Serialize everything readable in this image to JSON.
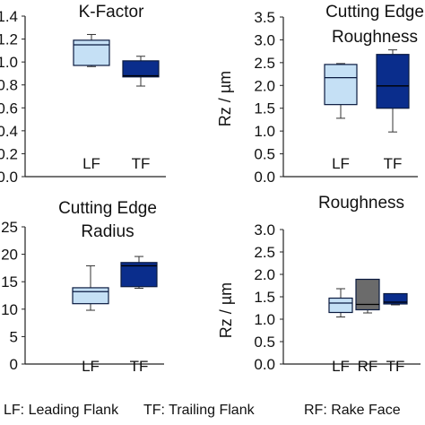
{
  "colors": {
    "leading_flank_fill": "#c5e0f5",
    "trailing_flank_fill": "#0a2d8c",
    "rake_face_fill": "#6b6b6b",
    "box_stroke": "#0a1a40",
    "axis": "#222222",
    "whisker": "#333333"
  },
  "legend_text": {
    "lf": "LF: Leading  Flank",
    "tf": "TF: Trailing Flank",
    "rf": "RF: Rake Face"
  },
  "chart_data": [
    {
      "type": "box",
      "title_lines": [
        "K-Factor"
      ],
      "ylabel": "",
      "ylim": [
        0,
        1.4
      ],
      "yticks": [
        "0.0",
        "0.2",
        "0.4",
        "0.6",
        "0.8",
        "1.0",
        "1.2",
        "1.4"
      ],
      "categories": [
        "LF",
        "TF"
      ],
      "series": [
        {
          "category": "LF",
          "color_key": "leading_flank_fill",
          "min": 0.96,
          "q1": 0.97,
          "median": 1.15,
          "q3": 1.19,
          "max": 1.24
        },
        {
          "category": "TF",
          "color_key": "trailing_flank_fill",
          "min": 0.79,
          "q1": 0.87,
          "median": 0.88,
          "q3": 1.01,
          "max": 1.05
        }
      ]
    },
    {
      "type": "box",
      "title_lines": [
        "Cutting Edge",
        "Roughness"
      ],
      "ylabel": "Rz / µm",
      "ylim": [
        0,
        3.5
      ],
      "yticks": [
        "0.0",
        "0.5",
        "1.0",
        "1.5",
        "2.0",
        "2.5",
        "3.0",
        "3.5"
      ],
      "categories": [
        "LF",
        "TF"
      ],
      "series": [
        {
          "category": "LF",
          "color_key": "leading_flank_fill",
          "min": 1.28,
          "q1": 1.58,
          "median": 2.17,
          "q3": 2.46,
          "max": 2.48
        },
        {
          "category": "TF",
          "color_key": "trailing_flank_fill",
          "min": 0.98,
          "q1": 1.5,
          "median": 1.99,
          "q3": 2.68,
          "max": 2.78
        }
      ]
    },
    {
      "type": "box",
      "title_lines": [
        "Cutting Edge",
        "Radius"
      ],
      "ylabel": "",
      "ylim": [
        0,
        25
      ],
      "yticks": [
        "0",
        "5",
        "10",
        "15",
        "20",
        "25"
      ],
      "categories": [
        "LF",
        "TF"
      ],
      "series": [
        {
          "category": "LF",
          "color_key": "leading_flank_fill",
          "min": 9.8,
          "q1": 11.0,
          "median": 13.2,
          "q3": 13.9,
          "max": 17.9
        },
        {
          "category": "TF",
          "color_key": "trailing_flank_fill",
          "min": 13.8,
          "q1": 14.1,
          "median": 17.9,
          "q3": 18.5,
          "max": 19.6
        }
      ]
    },
    {
      "type": "box",
      "title_lines": [
        "Roughness"
      ],
      "ylabel": "Rz / µm",
      "ylim": [
        0,
        3.0
      ],
      "yticks": [
        "0.0",
        "0.5",
        "1.0",
        "1.5",
        "2.0",
        "2.5",
        "3.0"
      ],
      "categories": [
        "LF",
        "RF",
        "TF"
      ],
      "series": [
        {
          "category": "LF",
          "color_key": "leading_flank_fill",
          "min": 1.05,
          "q1": 1.15,
          "median": 1.36,
          "q3": 1.47,
          "max": 1.68
        },
        {
          "category": "RF",
          "color_key": "rake_face_fill",
          "min": 1.14,
          "q1": 1.21,
          "median": 1.33,
          "q3": 1.89,
          "max": 1.89
        },
        {
          "category": "TF",
          "color_key": "trailing_flank_fill",
          "min": 1.32,
          "q1": 1.34,
          "median": 1.38,
          "q3": 1.57,
          "max": 1.57
        }
      ]
    }
  ]
}
